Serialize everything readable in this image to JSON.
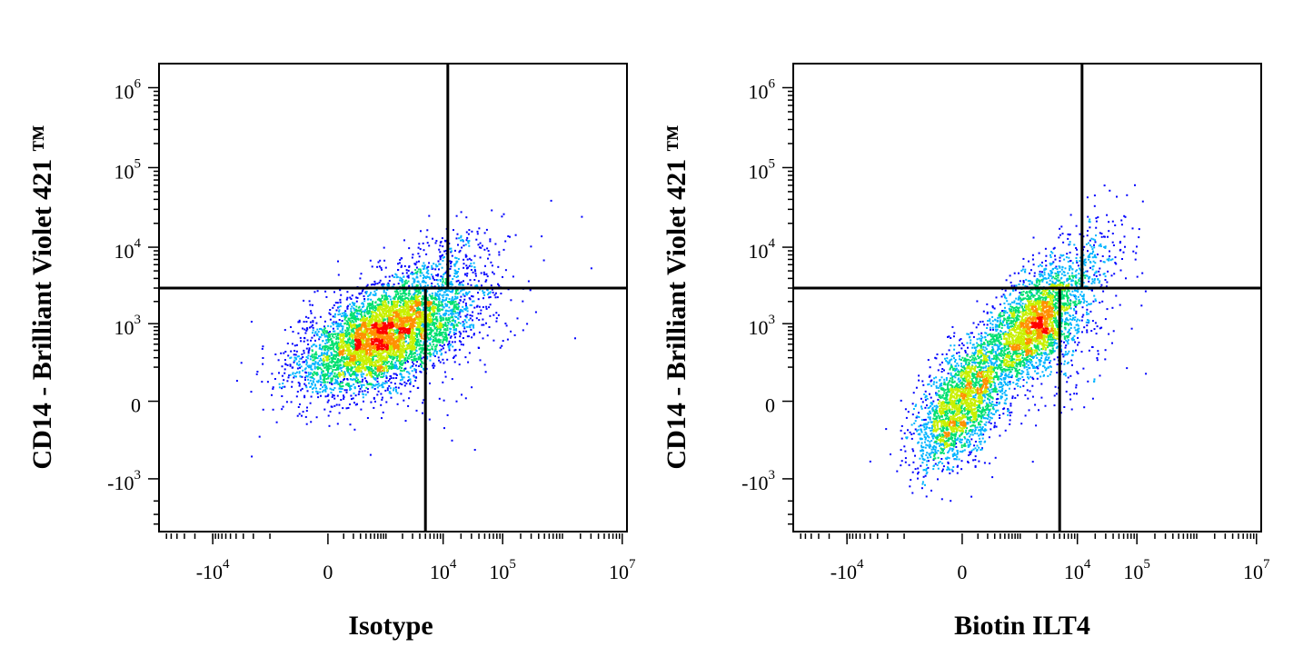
{
  "chart_data": [
    {
      "type": "scatter",
      "title": "",
      "xlabel": "Isotype",
      "ylabel": "CD14 - Brilliant Violet 421 ™",
      "x_scale": "biexponential",
      "y_scale": "biexponential",
      "x_ticks": [
        {
          "value": -10000,
          "base": "-10",
          "exp": "4"
        },
        {
          "value": 0,
          "base": "0",
          "exp": ""
        },
        {
          "value": 10000,
          "base": "10",
          "exp": "4"
        },
        {
          "value": 100000,
          "base": "10",
          "exp": "5"
        },
        {
          "value": 10000000,
          "base": "10",
          "exp": "7"
        }
      ],
      "y_ticks": [
        {
          "value": 1000000,
          "base": "10",
          "exp": "6"
        },
        {
          "value": 100000,
          "base": "10",
          "exp": "5"
        },
        {
          "value": 10000,
          "base": "10",
          "exp": "4"
        },
        {
          "value": 1000,
          "base": "10",
          "exp": "3"
        },
        {
          "value": 0,
          "base": "0",
          "exp": ""
        },
        {
          "value": -1000,
          "base": "-10",
          "exp": "3"
        }
      ],
      "quadrant_gate": {
        "x_lower": 5000,
        "x_upper": 12000,
        "y": 3000
      },
      "populations": [
        {
          "center": [
            900,
            700
          ],
          "spread": [
            0.09,
            0.06
          ],
          "count": 5200
        },
        {
          "center": [
            10000,
            6000
          ],
          "spread": [
            0.07,
            0.05
          ],
          "count": 260
        },
        {
          "center": [
            12000,
            500
          ],
          "spread": [
            0.12,
            0.11
          ],
          "count": 90
        }
      ],
      "density_colors": [
        "#0000ff",
        "#00b4ff",
        "#00e070",
        "#c8f000",
        "#ff9000",
        "#ff0000"
      ]
    },
    {
      "type": "scatter",
      "title": "",
      "xlabel": "Biotin ILT4",
      "ylabel": "CD14 - Brilliant Violet 421 ™",
      "x_scale": "biexponential",
      "y_scale": "biexponential",
      "x_ticks": [
        {
          "value": -10000,
          "base": "-10",
          "exp": "4"
        },
        {
          "value": 0,
          "base": "0",
          "exp": ""
        },
        {
          "value": 10000,
          "base": "10",
          "exp": "4"
        },
        {
          "value": 100000,
          "base": "10",
          "exp": "5"
        },
        {
          "value": 10000000,
          "base": "10",
          "exp": "7"
        }
      ],
      "y_ticks": [
        {
          "value": 1000000,
          "base": "10",
          "exp": "6"
        },
        {
          "value": 100000,
          "base": "10",
          "exp": "5"
        },
        {
          "value": 10000,
          "base": "10",
          "exp": "4"
        },
        {
          "value": 1000,
          "base": "10",
          "exp": "3"
        },
        {
          "value": 0,
          "base": "0",
          "exp": ""
        },
        {
          "value": -1000,
          "base": "-10",
          "exp": "3"
        }
      ],
      "quadrant_gate": {
        "x_lower": 5000,
        "x_upper": 12000,
        "y": 3000
      },
      "populations": [
        {
          "center": [
            0,
            0
          ],
          "spread": [
            0.05,
            0.07
          ],
          "count": 2400
        },
        {
          "center": [
            1800,
            1000
          ],
          "spread": [
            0.05,
            0.06
          ],
          "count": 2600
        },
        {
          "center": [
            12000,
            7000
          ],
          "spread": [
            0.05,
            0.05
          ],
          "count": 220
        },
        {
          "center": [
            10000,
            600
          ],
          "spread": [
            0.06,
            0.09
          ],
          "count": 160
        }
      ],
      "density_colors": [
        "#0000ff",
        "#00b4ff",
        "#00e070",
        "#c8f000",
        "#ff9000",
        "#ff0000"
      ]
    }
  ]
}
